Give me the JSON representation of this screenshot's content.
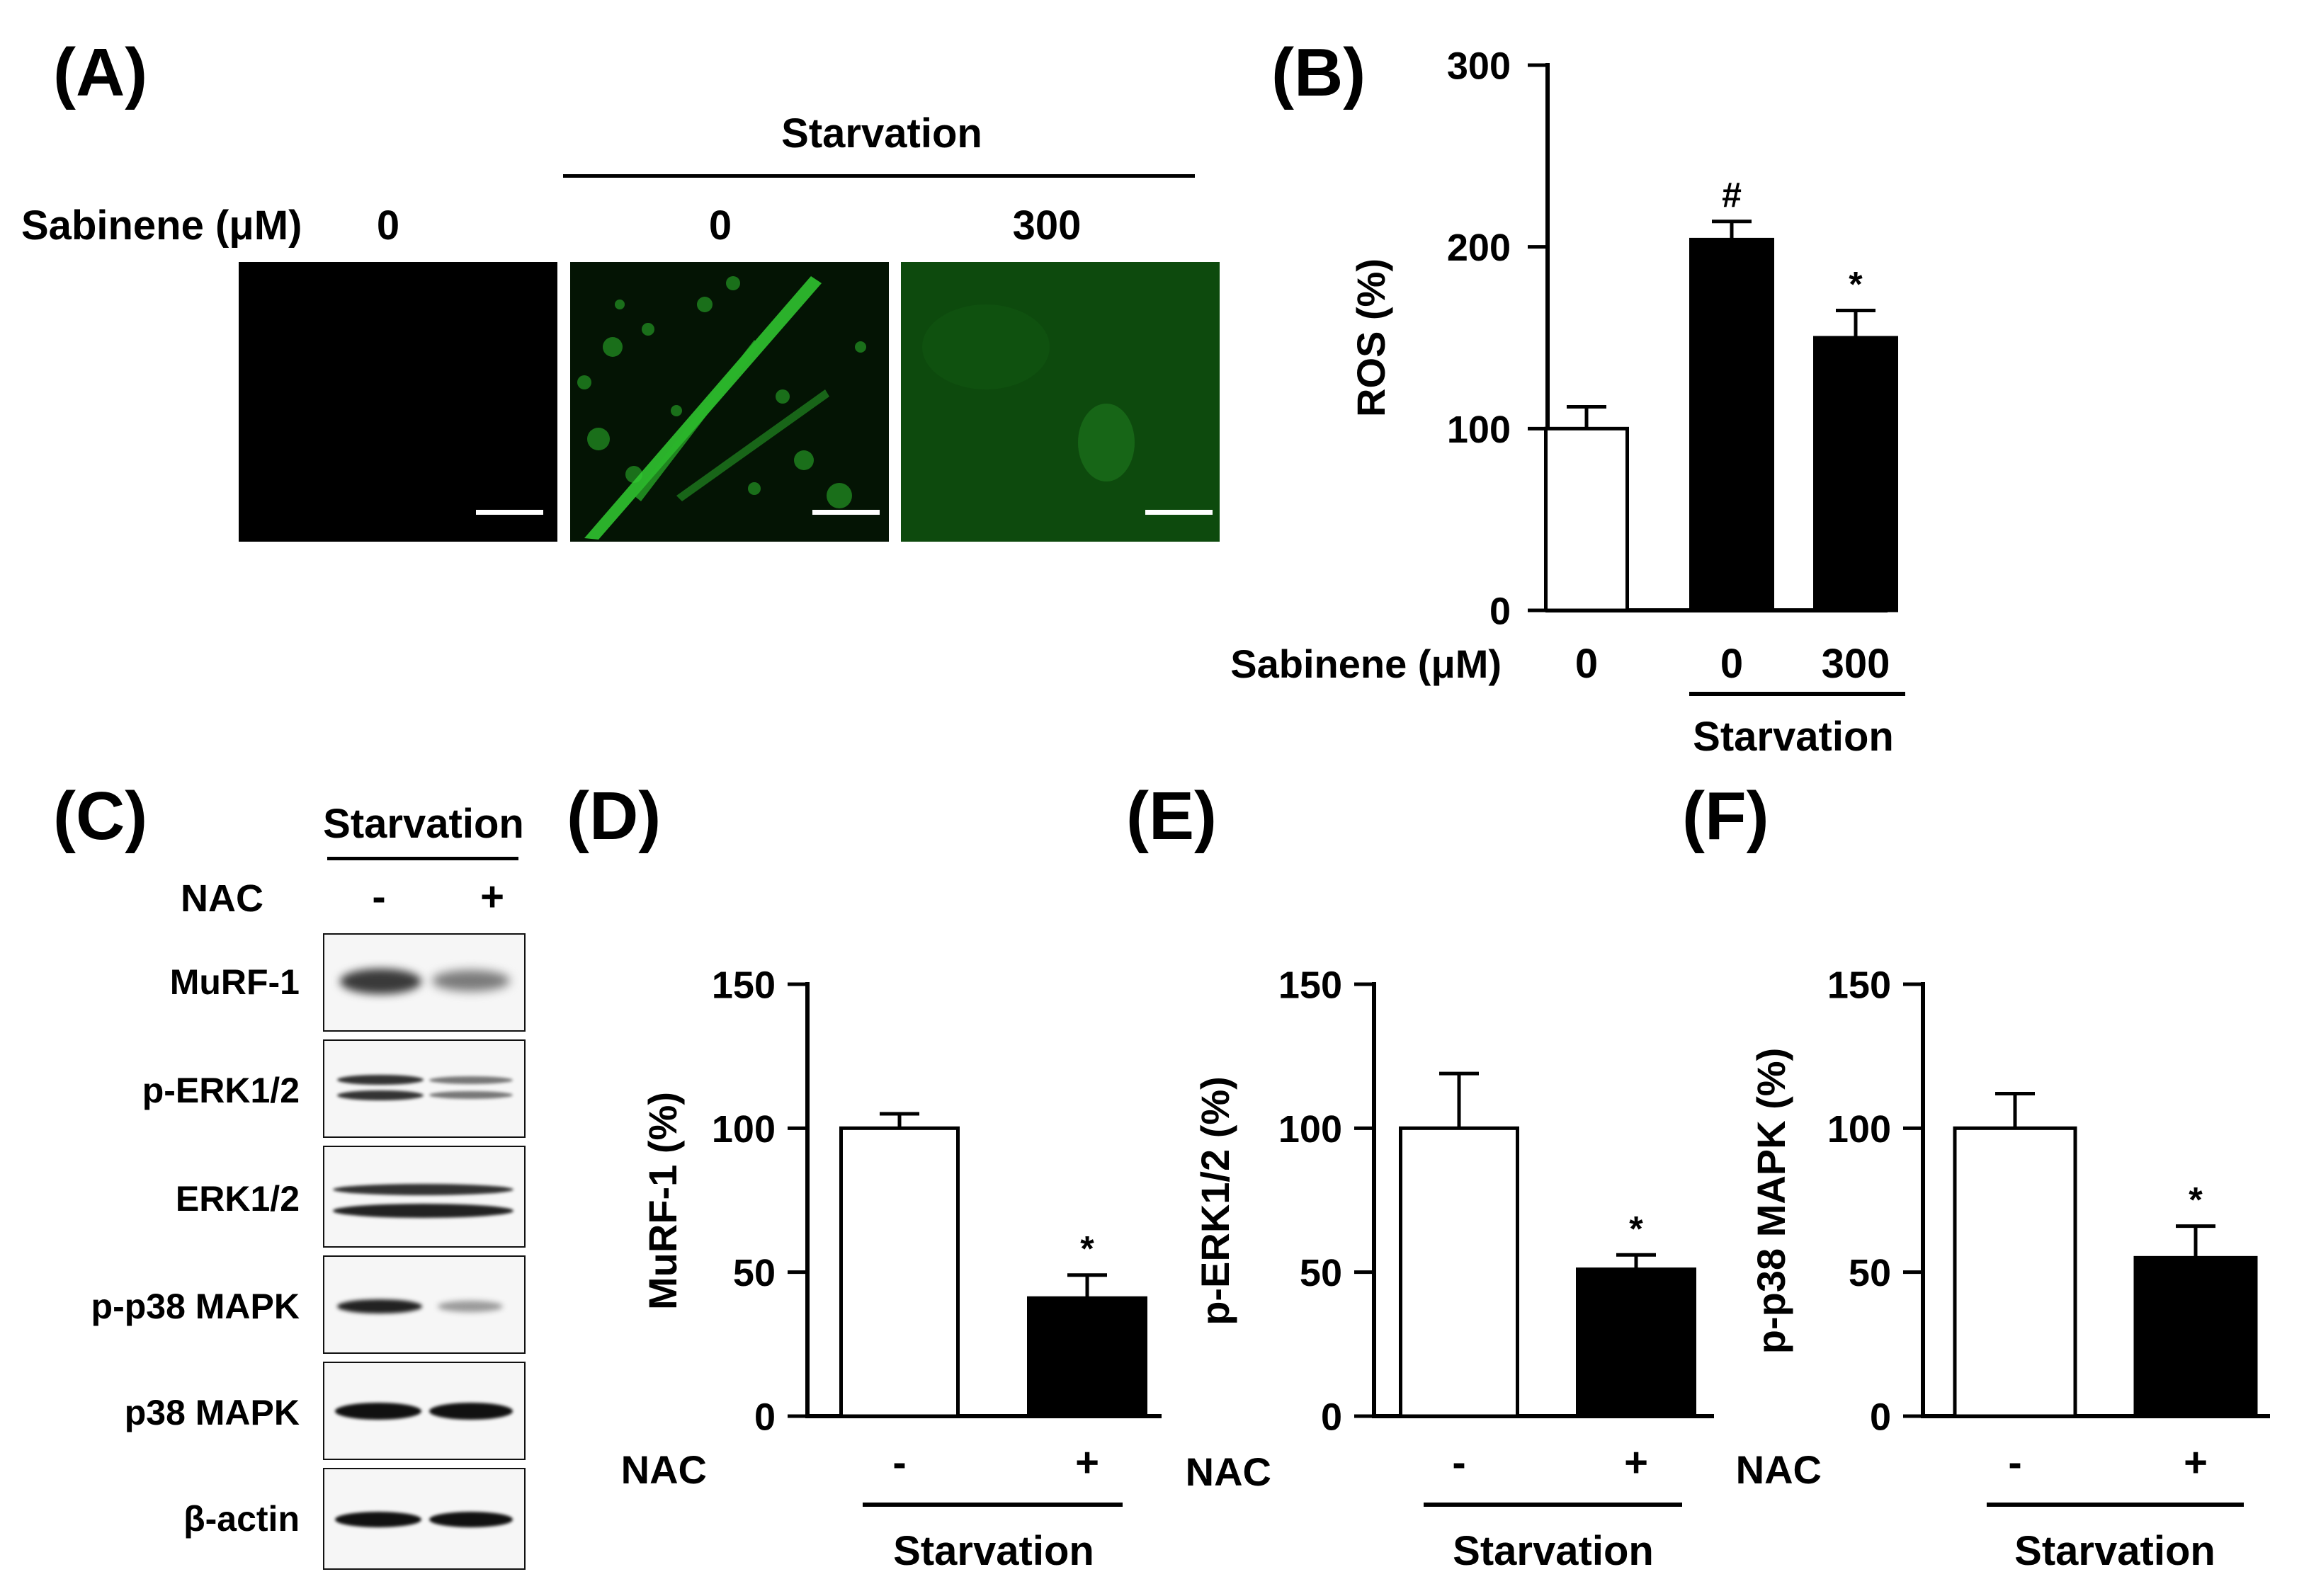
{
  "panels": {
    "a": "(A)",
    "b": "(B)",
    "c": "(C)",
    "d": "(D)",
    "e": "(E)",
    "f": "(F)"
  },
  "panel_a": {
    "group_label": "Starvation",
    "row_label": "Sabinene (μM)",
    "conditions": [
      "0",
      "0",
      "300"
    ]
  },
  "panel_c": {
    "group_label": "Starvation",
    "treatment_label": "NAC",
    "lanes": [
      "-",
      "+"
    ],
    "bands": [
      "MuRF-1",
      "p-ERK1/2",
      "ERK1/2",
      "p-p38 MAPK",
      "p38 MAPK",
      "β-actin"
    ]
  },
  "colors": {
    "control_bar": "#ffffff",
    "treated_bar": "#000000",
    "fluorescence": "#1fae1f"
  },
  "chart_data": [
    {
      "id": "b",
      "type": "bar",
      "ylabel": "ROS (%)",
      "ylim": [
        0,
        300
      ],
      "yticks": [
        0,
        100,
        200,
        300
      ],
      "category_axis_label": "Sabinene (μM)",
      "categories": [
        "0",
        "0",
        "300"
      ],
      "group_label": "Starvation",
      "values": [
        100,
        204,
        150
      ],
      "errors": [
        12,
        10,
        15
      ],
      "annotations": [
        "",
        "#",
        "*"
      ],
      "fills": [
        "white",
        "black",
        "black"
      ]
    },
    {
      "id": "d",
      "type": "bar",
      "ylabel": "MuRF-1 (%)",
      "ylim": [
        0,
        150
      ],
      "yticks": [
        0,
        50,
        100,
        150
      ],
      "category_axis_label": "NAC",
      "categories": [
        "-",
        "+"
      ],
      "group_label": "Starvation",
      "values": [
        100,
        41
      ],
      "errors": [
        5,
        8
      ],
      "annotations": [
        "",
        "*"
      ],
      "fills": [
        "white",
        "black"
      ]
    },
    {
      "id": "e",
      "type": "bar",
      "ylabel": "p-ERK1/2 (%)",
      "ylim": [
        0,
        150
      ],
      "yticks": [
        0,
        50,
        100,
        150
      ],
      "category_axis_label": "NAC",
      "categories": [
        "-",
        "+"
      ],
      "group_label": "Starvation",
      "values": [
        100,
        51
      ],
      "errors": [
        19,
        5
      ],
      "annotations": [
        "",
        "*"
      ],
      "fills": [
        "white",
        "black"
      ]
    },
    {
      "id": "f",
      "type": "bar",
      "ylabel": "p-p38 MAPK (%)",
      "ylim": [
        0,
        150
      ],
      "yticks": [
        0,
        50,
        100,
        150
      ],
      "category_axis_label": "NAC",
      "categories": [
        "-",
        "+"
      ],
      "group_label": "Starvation",
      "values": [
        100,
        55
      ],
      "errors": [
        12,
        11
      ],
      "annotations": [
        "",
        "*"
      ],
      "fills": [
        "white",
        "black"
      ]
    }
  ]
}
